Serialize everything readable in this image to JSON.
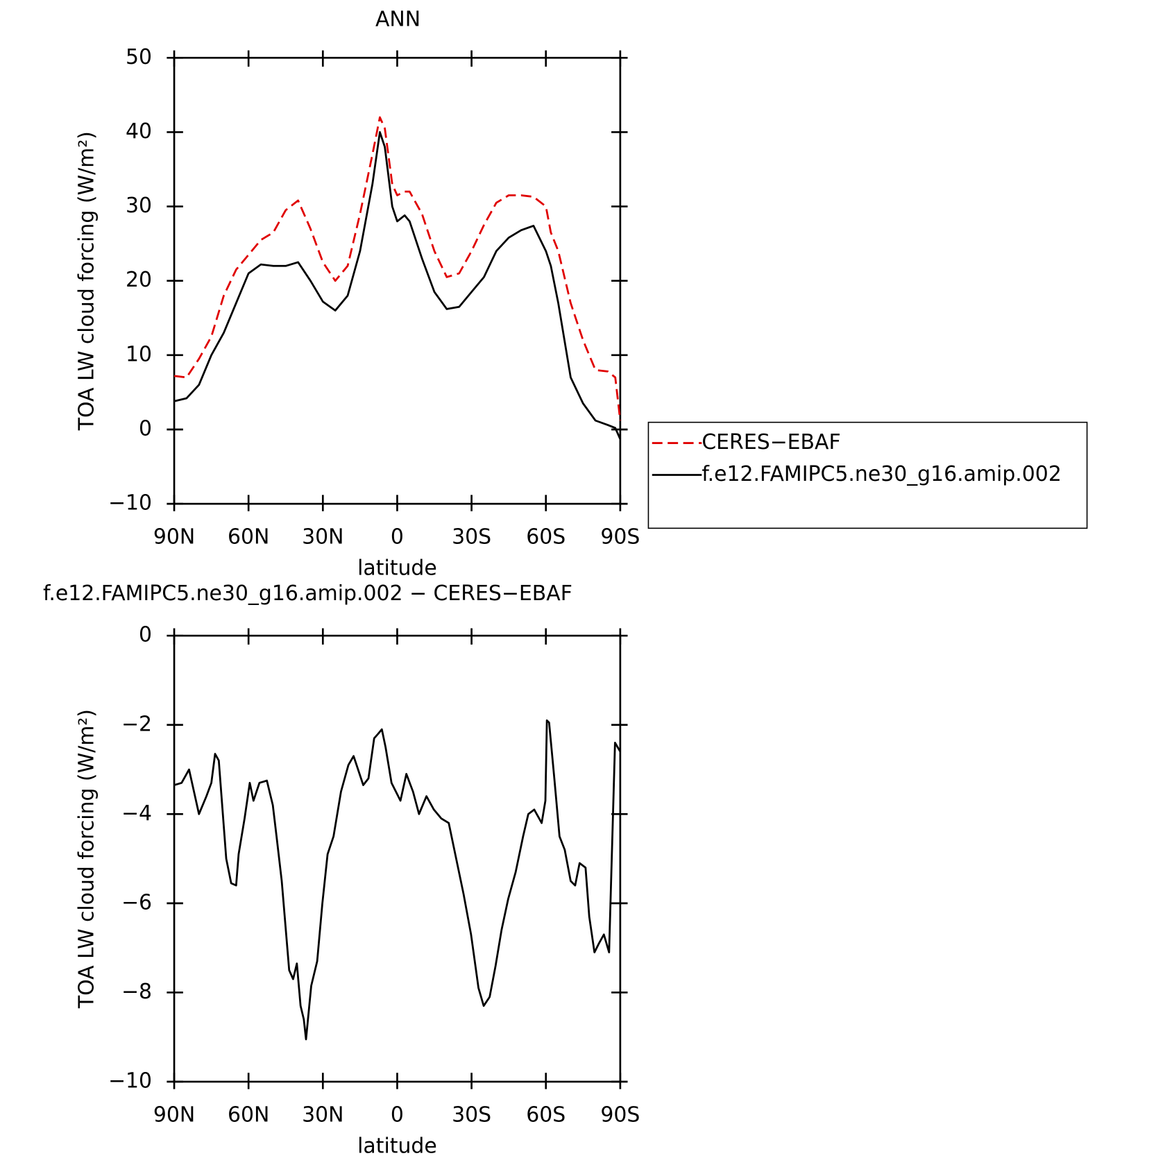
{
  "chart_data": [
    {
      "type": "line",
      "title": "ANN",
      "xlabel": "latitude",
      "ylabel": "TOA LW cloud forcing (W/m²)",
      "x": [
        90,
        85,
        80,
        75,
        70,
        65,
        60,
        55,
        50,
        45,
        40,
        35,
        30,
        25,
        20,
        15,
        10,
        7,
        5,
        2,
        0,
        -3,
        -5,
        -10,
        -15,
        -20,
        -25,
        -30,
        -35,
        -40,
        -45,
        -50,
        -55,
        -60,
        -62,
        -65,
        -70,
        -75,
        -80,
        -85,
        -88,
        -90
      ],
      "series": [
        {
          "name": "CERES−EBAF",
          "color": "#e00000",
          "dash": true,
          "values": [
            7.2,
            7.0,
            9.5,
            12.5,
            18,
            21.5,
            23.5,
            25.5,
            26.5,
            29.5,
            30.8,
            27,
            22.5,
            20,
            22,
            29,
            37,
            42,
            40.5,
            33,
            31.5,
            32,
            32,
            29,
            24,
            20.5,
            21,
            24,
            27.5,
            30.5,
            31.5,
            31.5,
            31.3,
            30,
            26.5,
            24,
            17,
            12,
            8,
            7.8,
            7,
            1.2
          ]
        },
        {
          "name": "f.e12.FAMIPC5.ne30_g16.amip.002",
          "color": "#000000",
          "dash": false,
          "values": [
            3.8,
            4.2,
            6,
            10,
            13,
            17,
            21,
            22.2,
            22,
            22,
            22.5,
            20,
            17.2,
            16,
            18,
            24,
            33,
            40,
            38,
            30,
            28,
            28.8,
            28,
            23,
            18.5,
            16.2,
            16.5,
            18.5,
            20.5,
            24,
            25.8,
            26.8,
            27.4,
            24,
            22,
            17,
            7,
            3.5,
            1.2,
            0.6,
            0.2,
            -1.3
          ]
        }
      ],
      "xlim": [
        90,
        -90
      ],
      "xticks": [
        {
          "value": 90,
          "label": "90N"
        },
        {
          "value": 60,
          "label": "60N"
        },
        {
          "value": 30,
          "label": "30N"
        },
        0,
        {
          "value": -30,
          "label": "30S"
        },
        {
          "value": -60,
          "label": "60S"
        },
        {
          "value": -90,
          "label": "90S"
        }
      ],
      "ylim": [
        -10,
        50
      ],
      "yticks": [
        {
          "value": -10,
          "label": "−10"
        },
        0,
        10,
        20,
        30,
        40,
        50
      ],
      "legend": "right"
    },
    {
      "type": "line",
      "title": "f.e12.FAMIPC5.ne30_g16.amip.002 − CERES−EBAF",
      "xlabel": "latitude",
      "ylabel": "TOA LW cloud forcing (W/m²)",
      "x": [
        90,
        87,
        84,
        82,
        80,
        77,
        75,
        73.5,
        72,
        69,
        67,
        65,
        64,
        61.6,
        59.5,
        58,
        55.6,
        52.6,
        50.2,
        48.7,
        46.6,
        43.6,
        42,
        40.5,
        39,
        37.7,
        36.8,
        34.7,
        32.3,
        30.2,
        28.1,
        25.7,
        22.7,
        19.7,
        17.6,
        15.8,
        13.7,
        11.6,
        9.3,
        7.7,
        6.2,
        4.7,
        2.3,
        -1.3,
        -3.7,
        -6.4,
        -8.8,
        -11.8,
        -14.8,
        -17.8,
        -20.8,
        -23.8,
        -26.8,
        -29.8,
        -32.8,
        -34.9,
        -37.3,
        -39.7,
        -42.1,
        -44.8,
        -47.8,
        -50.8,
        -52.9,
        -55.3,
        -58.3,
        -59.8,
        -60.4,
        -61.3,
        -63.4,
        -65.5,
        -67.6,
        -70,
        -71.8,
        -73.6,
        -76,
        -77.5,
        -79.6,
        -81.4,
        -83.4,
        -85.5,
        -87.9,
        -90
      ],
      "series": [
        {
          "name": "f.e12.FAMIPC5.ne30_g16.amip.002 − CERES−EBAF",
          "color": "#000000",
          "dash": false,
          "values": [
            -3.35,
            -3.3,
            -3.0,
            -3.5,
            -4.0,
            -3.6,
            -3.3,
            -2.65,
            -2.8,
            -5.0,
            -5.55,
            -5.6,
            -4.9,
            -4.1,
            -3.3,
            -3.7,
            -3.3,
            -3.25,
            -3.8,
            -4.5,
            -5.5,
            -7.5,
            -7.7,
            -7.35,
            -8.3,
            -8.6,
            -9.05,
            -7.85,
            -7.3,
            -6.0,
            -4.9,
            -4.5,
            -3.5,
            -2.9,
            -2.7,
            -3.0,
            -3.35,
            -3.2,
            -2.3,
            -2.2,
            -2.1,
            -2.5,
            -3.3,
            -3.7,
            -3.1,
            -3.5,
            -4.0,
            -3.6,
            -3.9,
            -4.1,
            -4.2,
            -5.0,
            -5.8,
            -6.7,
            -7.9,
            -8.3,
            -8.1,
            -7.4,
            -6.6,
            -5.9,
            -5.3,
            -4.5,
            -4.0,
            -3.9,
            -4.2,
            -3.7,
            -1.9,
            -1.95,
            -3.2,
            -4.5,
            -4.8,
            -5.5,
            -5.6,
            -5.1,
            -5.2,
            -6.3,
            -7.1,
            -6.9,
            -6.7,
            -7.1,
            -2.4,
            -2.6
          ]
        }
      ],
      "xlim": [
        90,
        -90
      ],
      "xticks": [
        {
          "value": 90,
          "label": "90N"
        },
        {
          "value": 60,
          "label": "60N"
        },
        {
          "value": 30,
          "label": "30N"
        },
        0,
        {
          "value": -30,
          "label": "30S"
        },
        {
          "value": -60,
          "label": "60S"
        },
        {
          "value": -90,
          "label": "90S"
        }
      ],
      "ylim": [
        -10,
        0
      ],
      "yticks": [
        {
          "value": -10,
          "label": "−10"
        },
        {
          "value": -8,
          "label": "−8"
        },
        {
          "value": -6,
          "label": "−6"
        },
        {
          "value": -4,
          "label": "−4"
        },
        {
          "value": -2,
          "label": "−2"
        },
        0
      ]
    }
  ]
}
